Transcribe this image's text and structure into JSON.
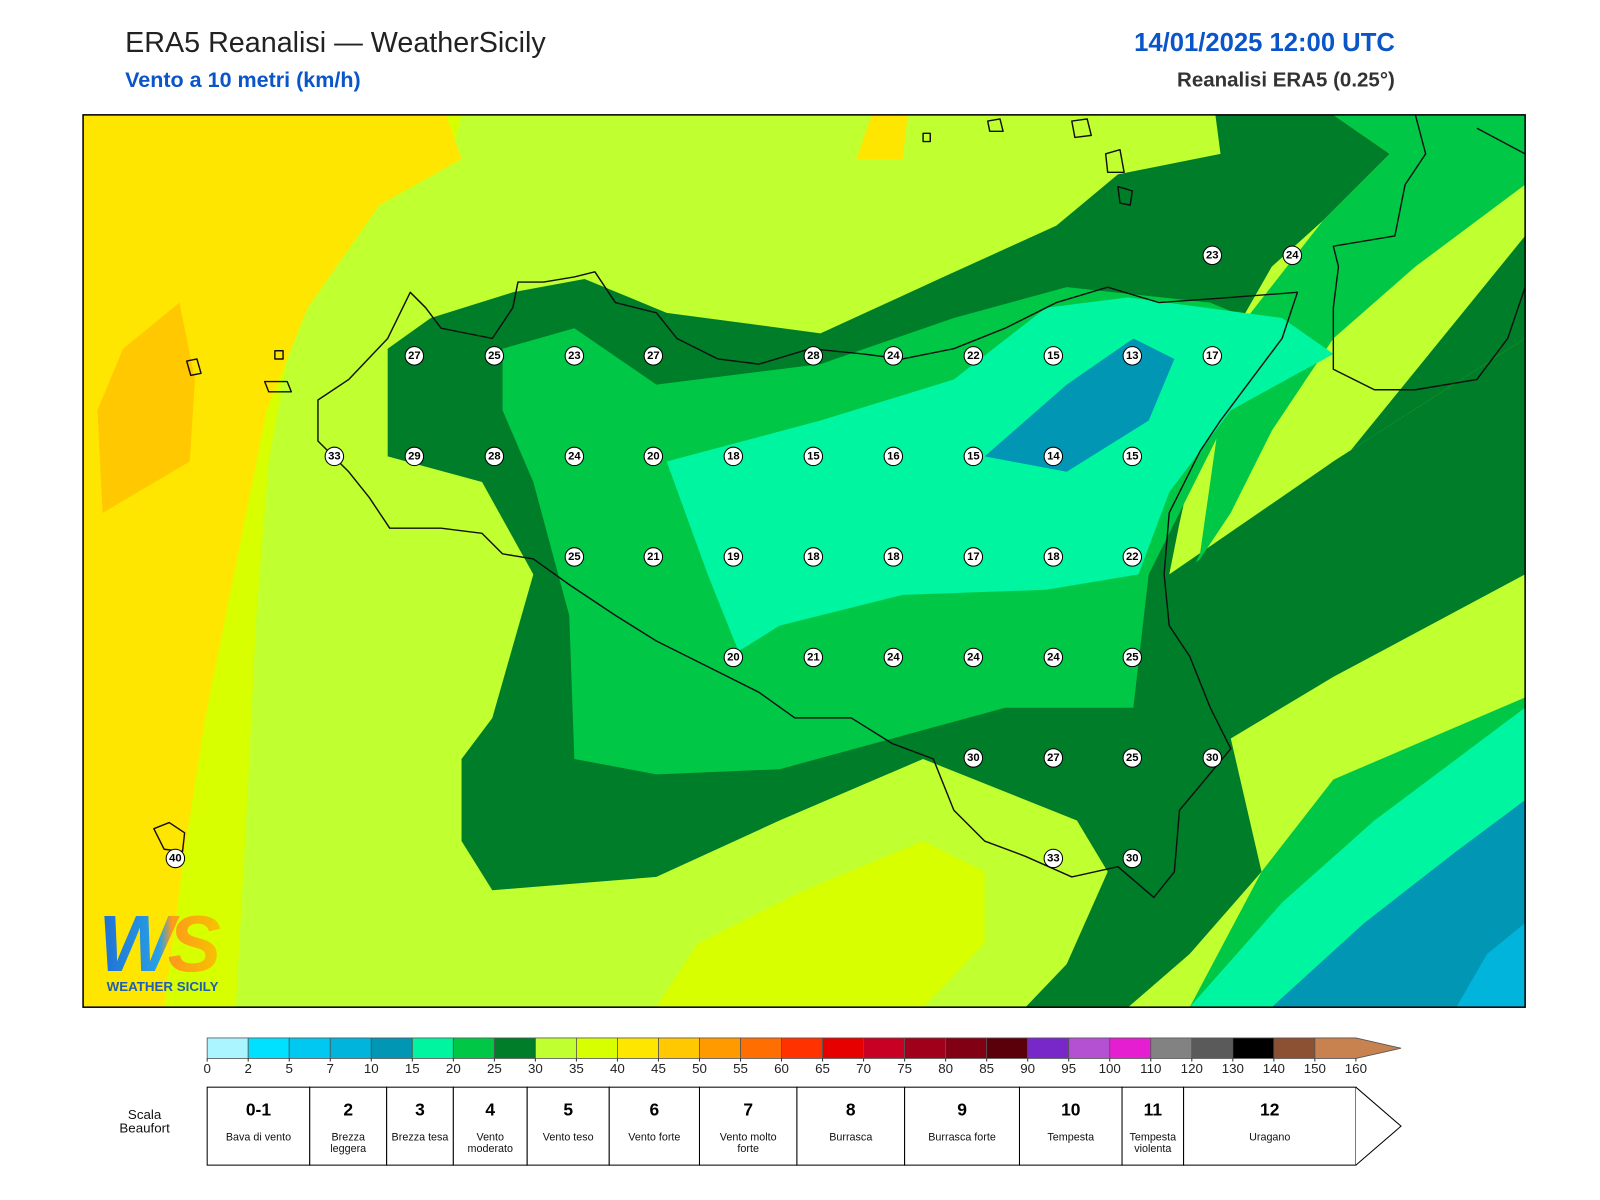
{
  "header": {
    "title": "ERA5 Reanalisi — WeatherSicily",
    "subtitle": "Vento a 10 metri (km/h)",
    "datetime": "14/01/2025 12:00 UTC",
    "source": "Reanalisi ERA5 (0.25°)"
  },
  "map": {
    "station_values": [
      23,
      24,
      27,
      25,
      23,
      27,
      28,
      24,
      22,
      15,
      13,
      17,
      33,
      29,
      28,
      24,
      20,
      18,
      15,
      16,
      15,
      14,
      15,
      25,
      21,
      19,
      18,
      18,
      17,
      18,
      22,
      20,
      21,
      24,
      24,
      24,
      25,
      30,
      27,
      25,
      30,
      40,
      33,
      30
    ]
  },
  "colorbar": {
    "ticks": [
      0,
      2,
      5,
      7,
      10,
      15,
      20,
      25,
      30,
      35,
      40,
      45,
      50,
      55,
      60,
      65,
      70,
      75,
      80,
      85,
      90,
      95,
      100,
      110,
      120,
      130,
      140,
      150,
      160
    ],
    "colors": [
      "#aaf5ff",
      "#00e0ff",
      "#00c8f0",
      "#00b4dc",
      "#0096b4",
      "#00f5a0",
      "#00c846",
      "#007d28",
      "#c0ff30",
      "#d7ff00",
      "#ffe600",
      "#ffc800",
      "#ff9b00",
      "#ff6e00",
      "#ff3200",
      "#e60000",
      "#c80023",
      "#a00019",
      "#820014",
      "#5a000a",
      "#7828c8",
      "#b450d2",
      "#e61ed2",
      "#828282",
      "#5a5a5a",
      "#000000",
      "#8c5032",
      "#c88250"
    ]
  },
  "beaufort": {
    "title": "Scala Beaufort",
    "levels": [
      {
        "force": "0-1",
        "label": "Bava di vento"
      },
      {
        "force": 2,
        "label": "Brezza leggera"
      },
      {
        "force": 3,
        "label": "Brezza tesa"
      },
      {
        "force": 4,
        "label": "Vento moderato"
      },
      {
        "force": 5,
        "label": "Vento teso"
      },
      {
        "force": 6,
        "label": "Vento forte"
      },
      {
        "force": 7,
        "label": "Vento molto forte"
      },
      {
        "force": 8,
        "label": "Burrasca"
      },
      {
        "force": 9,
        "label": "Burrasca forte"
      },
      {
        "force": 10,
        "label": "Tempesta"
      },
      {
        "force": 11,
        "label": "Tempesta violenta"
      },
      {
        "force": 12,
        "label": "Uragano"
      }
    ]
  },
  "logo": {
    "mark": "WS",
    "caption": "WEATHER SICILY"
  }
}
